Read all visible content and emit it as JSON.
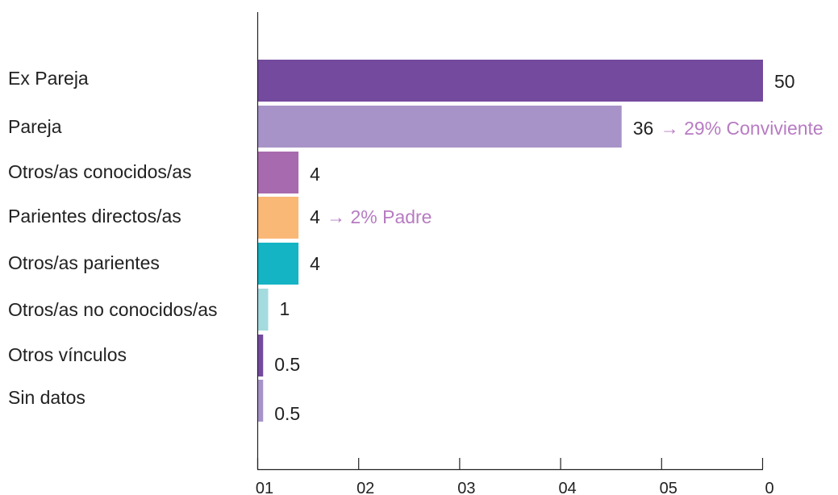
{
  "chart_data": {
    "type": "bar",
    "orientation": "horizontal",
    "categories": [
      "Ex Pareja",
      "Pareja",
      "Otros/as conocidos/as",
      "Parientes directos/as",
      "Otros/as parientes",
      "Otros/as no conocidos/as",
      "Otros vínculos",
      "Sin datos"
    ],
    "values": [
      50,
      36,
      4,
      4,
      4,
      1,
      0.5,
      0.5
    ],
    "value_labels": [
      "50",
      "36",
      "4",
      "4",
      "4",
      "1",
      "0.5",
      "0.5"
    ],
    "bar_colors": [
      "#744A9E",
      "#A793C8",
      "#A86AAE",
      "#FAB877",
      "#14B4C4",
      "#A4DBDF",
      "#744A9E",
      "#A793C8"
    ],
    "annotations": [
      {
        "category_index": 1,
        "text": "→ 29% Conviviente",
        "color": "#B77BC2"
      },
      {
        "category_index": 3,
        "text": "→ 2% Padre",
        "color": "#B77BC2"
      }
    ],
    "x_tick_labels": [
      "01",
      "02",
      "03",
      "04",
      "05",
      "0"
    ],
    "xlim": [
      0,
      50
    ],
    "grid": false,
    "title": "",
    "xlabel": "",
    "ylabel": ""
  }
}
